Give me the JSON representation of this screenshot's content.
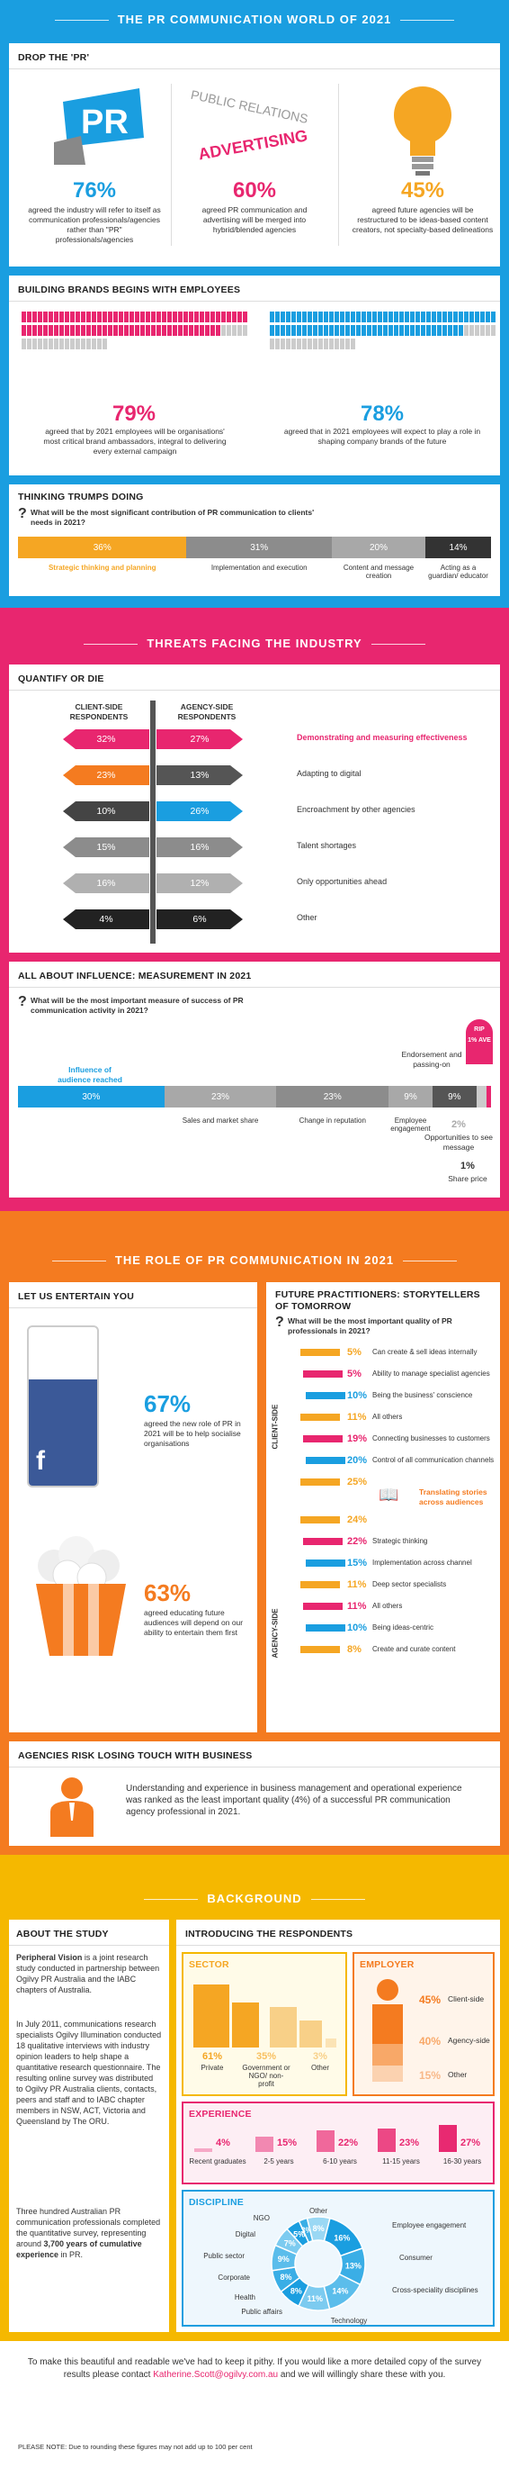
{
  "band1": {
    "title": "THE PR COMMUNICATION WORLD OF 2021",
    "color": "#1a9ee0"
  },
  "drop": {
    "title": "DROP THE 'PR'",
    "items": [
      {
        "pct": "76%",
        "text": "agreed the industry will refer to itself as communication professionals/agencies rather than \"PR\" professionals/agencies",
        "icon_text": "PR"
      },
      {
        "pct": "60%",
        "text": "agreed PR communication and advertising will be merged into hybrid/blended agencies",
        "icon_text_a": "PUBLIC RELATIONS",
        "icon_text_b": "ADVERTISING"
      },
      {
        "pct": "45%",
        "text": "agreed future agencies will be restructured to be ideas-based content creators, not specialty-based delineations"
      }
    ]
  },
  "brands": {
    "title": "BUILDING BRANDS BEGINS WITH EMPLOYEES",
    "left": {
      "pct": "79%",
      "text": "agreed that by 2021 employees will be organisations' most critical brand ambassadors, integral to delivering every external campaign",
      "value": 79
    },
    "right": {
      "pct": "78%",
      "text": "agreed that in 2021 employees will expect to play a role in shaping company brands of the future",
      "value": 78
    }
  },
  "thinking": {
    "title": "THINKING TRUMPS DOING",
    "question": "What will be the most significant contribution of PR communication to clients' needs in 2021?",
    "segments": [
      {
        "pct": "36%",
        "value": 36,
        "label": "Strategic thinking and planning",
        "color": "#f5a623"
      },
      {
        "pct": "31%",
        "value": 31,
        "label": "Implementation and execution",
        "color": "#8c8c8c"
      },
      {
        "pct": "20%",
        "value": 20,
        "label": "Content and message creation",
        "color": "#a8a8a8"
      },
      {
        "pct": "14%",
        "value": 14,
        "label": "Acting as a guardian/ educator",
        "color": "#333333"
      }
    ]
  },
  "band2": {
    "title": "THREATS FACING THE INDUSTRY",
    "color": "#e8266f"
  },
  "quantify": {
    "title": "QUANTIFY OR DIE",
    "client_head": "CLIENT-SIDE RESPONDENTS",
    "agency_head": "AGENCY-SIDE RESPONDENTS",
    "rows": [
      {
        "client": "32%",
        "agency": "27%",
        "label": "Demonstrating and measuring effectiveness",
        "client_color": "#e8266f",
        "agency_color": "#e8266f",
        "highlight": true
      },
      {
        "client": "23%",
        "agency": "13%",
        "label": "Adapting to digital",
        "client_color": "#f47b20",
        "agency_color": "#555555"
      },
      {
        "client": "10%",
        "agency": "26%",
        "label": "Encroachment by other agencies",
        "client_color": "#444444",
        "agency_color": "#1a9ee0"
      },
      {
        "client": "15%",
        "agency": "16%",
        "label": "Talent shortages",
        "client_color": "#8c8c8c",
        "agency_color": "#8c8c8c"
      },
      {
        "client": "16%",
        "agency": "12%",
        "label": "Only opportunities ahead",
        "client_color": "#b0b0b0",
        "agency_color": "#b0b0b0"
      },
      {
        "client": "4%",
        "agency": "6%",
        "label": "Other",
        "client_color": "#222222",
        "agency_color": "#222222"
      }
    ]
  },
  "influence": {
    "title": "ALL ABOUT INFLUENCE: MEASUREMENT IN 2021",
    "question": "What will be the most important measure of success of PR communication activity in 2021?",
    "segments": [
      {
        "pct": "30%",
        "value": 30,
        "label": "Influence of audience reached",
        "color": "#1a9ee0"
      },
      {
        "pct": "23%",
        "value": 23,
        "label": "Sales and market share",
        "color": "#a8a8a8"
      },
      {
        "pct": "23%",
        "value": 23,
        "label": "Change in reputation",
        "color": "#8c8c8c"
      },
      {
        "pct": "9%",
        "value": 9,
        "label": "Employee engagement",
        "color": "#a8a8a8"
      },
      {
        "pct": "9%",
        "value": 9,
        "label": "",
        "color": "#555555"
      },
      {
        "pct": "2%",
        "value": 2,
        "label": "Opportunities to see message",
        "color": "#cccccc"
      },
      {
        "pct": "1%",
        "value": 1,
        "label": "Share price",
        "color": "#e8266f"
      }
    ],
    "endorse": "Endorsement and passing-on",
    "rip": "RIP",
    "rip2": "1% AVE",
    "share_pct": "1%",
    "share_label": "Share price",
    "opp_pct": "2%"
  },
  "band3": {
    "title": "THE ROLE OF PR COMMUNICATION IN 2021",
    "color": "#f47b20"
  },
  "entertain": {
    "title": "LET US ENTERTAIN YOU",
    "fb": {
      "pct": "67%",
      "text": "agreed the new role of PR in 2021 will be to help socialise organisations",
      "value": 67
    },
    "pop": {
      "pct": "63%",
      "text": "agreed educating future audiences will depend on our ability to entertain them first"
    }
  },
  "future": {
    "title": "FUTURE PRACTITIONERS: STORYTELLERS OF TOMORROW",
    "question": "What will be the most important quality of PR professionals in 2021?",
    "client_label": "CLIENT-SIDE",
    "agency_label": "AGENCY-SIDE",
    "client": [
      {
        "pct": "5%",
        "label": "Can create & sell ideas internally",
        "color": "#f5a623"
      },
      {
        "pct": "5%",
        "label": "Ability to manage specialist agencies",
        "color": "#e8266f"
      },
      {
        "pct": "10%",
        "label": "Being the business' conscience",
        "color": "#1a9ee0"
      },
      {
        "pct": "11%",
        "label": "All others",
        "color": "#f5a623"
      },
      {
        "pct": "19%",
        "label": "Connecting businesses to customers",
        "color": "#e8266f"
      },
      {
        "pct": "20%",
        "label": "Control of all communication channels",
        "color": "#1a9ee0"
      },
      {
        "pct": "25%",
        "label": "",
        "color": "#f5a623"
      }
    ],
    "translating": "Translating stories across audiences",
    "agency": [
      {
        "pct": "24%",
        "label": "",
        "color": "#f5a623"
      },
      {
        "pct": "22%",
        "label": "Strategic thinking",
        "color": "#e8266f"
      },
      {
        "pct": "15%",
        "label": "Implementation across channel",
        "color": "#1a9ee0"
      },
      {
        "pct": "11%",
        "label": "Deep sector specialists",
        "color": "#f5a623"
      },
      {
        "pct": "11%",
        "label": "All others",
        "color": "#e8266f"
      },
      {
        "pct": "10%",
        "label": "Being ideas-centric",
        "color": "#1a9ee0"
      },
      {
        "pct": "8%",
        "label": "Create and curate content",
        "color": "#f5a623"
      }
    ]
  },
  "risk": {
    "title": "AGENCIES RISK LOSING TOUCH WITH BUSINESS",
    "text": "Understanding and experience in business management and operational experience was ranked as the least important quality (4%) of a successful PR communication agency professional in 2021."
  },
  "band4": {
    "title": "BACKGROUND",
    "color": "#f5b800"
  },
  "study": {
    "title": "ABOUT THE STUDY",
    "p1_bold": "Peripheral Vision",
    "p1": " is a joint research study conducted in partnership between Ogilvy PR Australia and the IABC chapters of Australia.",
    "p2": "In July 2011, communications research specialists Ogilvy Illumination conducted 18 qualitative interviews with industry opinion leaders to help shape a quantitative research questionnaire. The resulting online survey was distributed to Ogilvy PR Australia clients, contacts, peers and staff and to IABC chapter members in NSW, ACT, Victoria and Queensland by The ORU.",
    "p3": "Three hundred Australian PR communication professionals completed the quantitative survey, representing around ",
    "p3_bold": "3,700 years of cumulative experience",
    "p3_end": " in PR."
  },
  "respondents": {
    "title": "INTRODUCING THE RESPONDENTS",
    "sector": {
      "title": "SECTOR",
      "items": [
        {
          "pct": "61%",
          "label": "Private",
          "color": "#f5a623"
        },
        {
          "pct": "35%",
          "label": "Government or NGO/ non-profit",
          "color": "#f5a623"
        },
        {
          "pct": "3%",
          "label": "Other",
          "color": "#f5a623"
        }
      ]
    },
    "employer": {
      "title": "EMPLOYER",
      "items": [
        {
          "pct": "45%",
          "label": "Client-side"
        },
        {
          "pct": "40%",
          "label": "Agency-side"
        },
        {
          "pct": "15%",
          "label": "Other"
        }
      ]
    },
    "experience": {
      "title": "EXPERIENCE",
      "items": [
        {
          "pct": "4%",
          "label": "Recent graduates",
          "value": 4
        },
        {
          "pct": "15%",
          "label": "2-5 years",
          "value": 15
        },
        {
          "pct": "22%",
          "label": "6-10 years",
          "value": 22
        },
        {
          "pct": "23%",
          "label": "11-15 years",
          "value": 23
        },
        {
          "pct": "27%",
          "label": "16-30 years",
          "value": 27
        }
      ]
    },
    "discipline": {
      "title": "DISCIPLINE",
      "items": [
        {
          "pct": "16%",
          "label": "Employee engagement",
          "value": 16
        },
        {
          "pct": "13%",
          "label": "Consumer",
          "value": 13
        },
        {
          "pct": "14%",
          "label": "Cross-speciality disciplines",
          "value": 14
        },
        {
          "pct": "11%",
          "label": "Technology",
          "value": 11
        },
        {
          "pct": "8%",
          "label": "Public affairs",
          "value": 8
        },
        {
          "pct": "8%",
          "label": "Health",
          "value": 8
        },
        {
          "pct": "9%",
          "label": "Corporate",
          "value": 9
        },
        {
          "pct": "7%",
          "label": "Public sector",
          "value": 7
        },
        {
          "pct": "5%",
          "label": "Digital",
          "value": 5
        },
        {
          "pct": "3%",
          "label": "NGO",
          "value": 3
        },
        {
          "pct": "8%",
          "label": "Other",
          "value": 8
        }
      ]
    }
  },
  "footer": {
    "text1": "To make this beautiful and readable we've had to keep it pithy. If you would like a more detailed copy of the survey results please contact ",
    "email": "Katherine.Scott@ogilvy.com.au",
    "text2": " and we will willingly share these with you.",
    "note": "PLEASE NOTE: Due to rounding these figures may not add up to 100 per cent"
  }
}
